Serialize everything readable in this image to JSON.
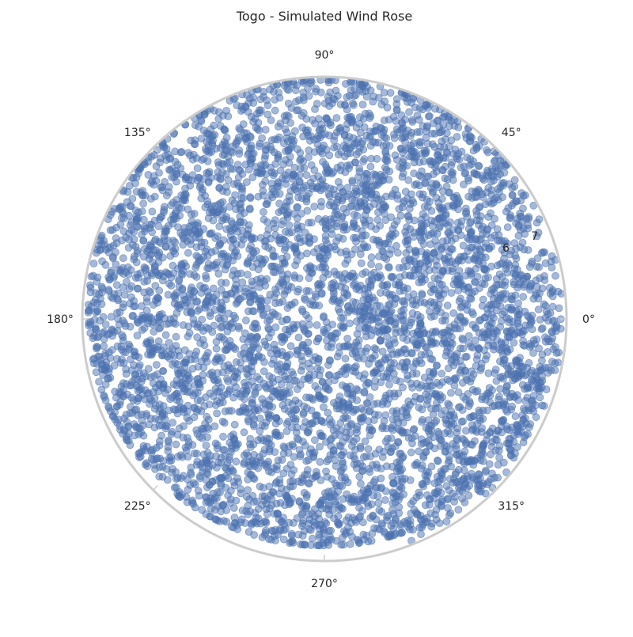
{
  "chart_data": {
    "type": "scatter",
    "projection": "polar",
    "title": "Togo - Simulated Wind Rose",
    "theta_direction": "counterclockwise",
    "theta_zero_location": "E",
    "theta_tick_labels": [
      "0°",
      "45°",
      "90°",
      "135°",
      "180°",
      "225°",
      "270°",
      "315°"
    ],
    "theta_tick_values_deg": [
      0,
      45,
      90,
      135,
      180,
      225,
      270,
      315
    ],
    "radial_tick_labels": [
      "6",
      "7"
    ],
    "radial_tick_values": [
      6,
      7
    ],
    "rlim": [
      0,
      7.8
    ],
    "radial_tick_label_angle_deg": 22.5,
    "grid": false,
    "series": [
      {
        "values": "simulated dense cloud: theta uniform 0–360°, r ≈ 0–7.8; sparser outliers toward 0° / 315°",
        "color": "#4c72b0",
        "alpha": 0.5,
        "marker": "circle"
      }
    ]
  },
  "style": {
    "frame_color": "#cccccc",
    "point_color": "#4c72b0",
    "text_color": "#262626"
  }
}
